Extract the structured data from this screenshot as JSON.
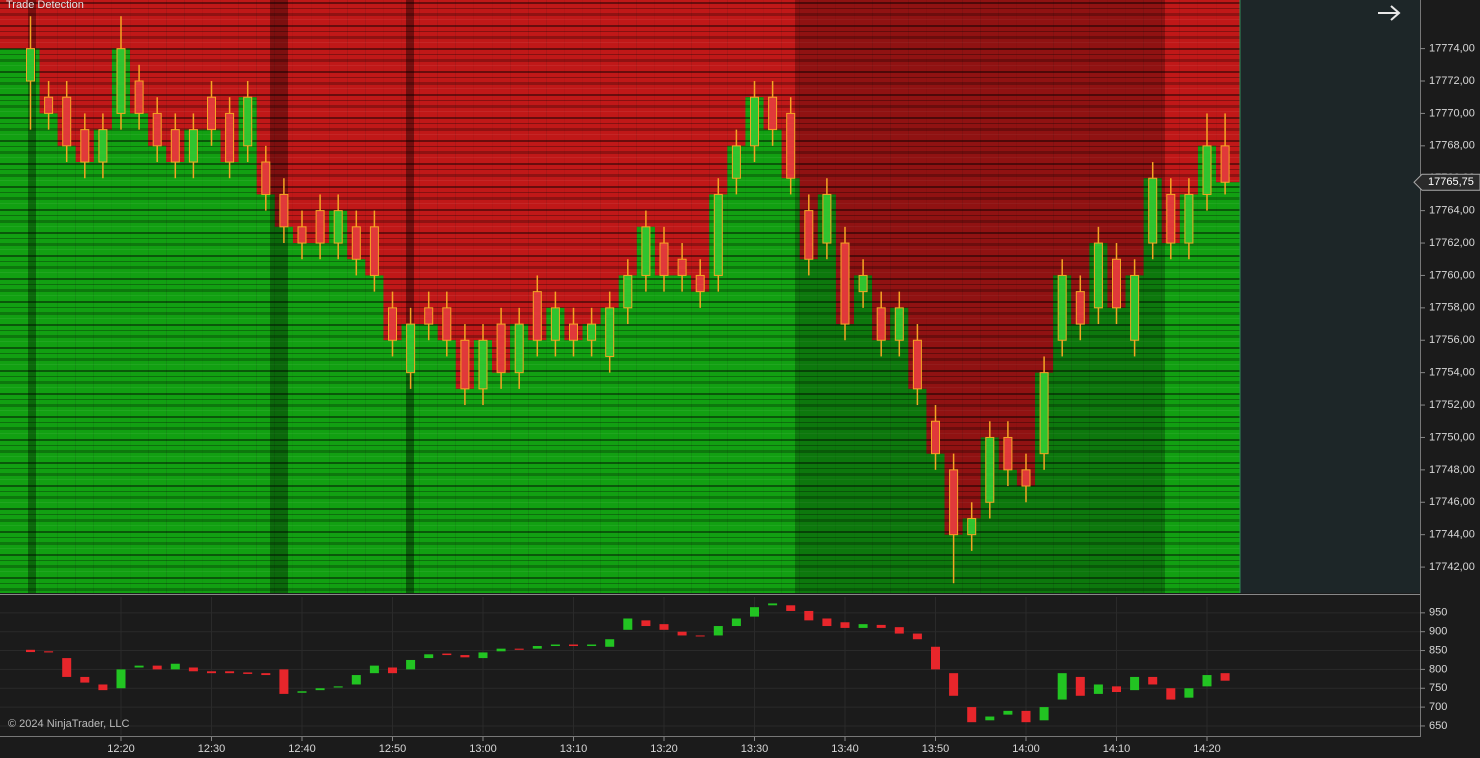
{
  "chart_data": [
    {
      "type": "candlestick",
      "title": "Trade Detection",
      "heatmap": true,
      "up_color": "#2fc42f",
      "down_color": "#e0393a",
      "wick_color": "#f5a623",
      "heat_up_color": "#12a012",
      "heat_down_color": "#c01818",
      "last_price_label": "17765,75",
      "x": [
        "12:10",
        "12:12",
        "12:14",
        "12:16",
        "12:18",
        "12:20",
        "12:22",
        "12:24",
        "12:26",
        "12:28",
        "12:30",
        "12:32",
        "12:34",
        "12:36",
        "12:38",
        "12:40",
        "12:42",
        "12:44",
        "12:46",
        "12:48",
        "12:50",
        "12:52",
        "12:54",
        "12:56",
        "12:58",
        "13:00",
        "13:02",
        "13:04",
        "13:06",
        "13:08",
        "13:10",
        "13:12",
        "13:14",
        "13:16",
        "13:18",
        "13:20",
        "13:22",
        "13:24",
        "13:26",
        "13:28",
        "13:30",
        "13:32",
        "13:34",
        "13:36",
        "13:38",
        "13:40",
        "13:42",
        "13:44",
        "13:46",
        "13:48",
        "13:50",
        "13:52",
        "13:54",
        "13:56",
        "13:58",
        "14:00",
        "14:02",
        "14:04",
        "14:06",
        "14:08",
        "14:10",
        "14:12",
        "14:14",
        "14:16",
        "14:18",
        "14:20",
        "14:22"
      ],
      "open": [
        17772,
        17771,
        17771,
        17769,
        17767,
        17770,
        17772,
        17770,
        17769,
        17767,
        17771,
        17770,
        17768,
        17767,
        17765,
        17763,
        17764,
        17762,
        17763,
        17763,
        17758,
        17754,
        17758,
        17758,
        17756,
        17753,
        17757,
        17754,
        17759,
        17756,
        17757,
        17756,
        17755,
        17758,
        17760,
        17762,
        17761,
        17760,
        17760,
        17766,
        17768,
        17771,
        17770,
        17764,
        17762,
        17762,
        17759,
        17758,
        17756,
        17756,
        17751,
        17748,
        17744,
        17746,
        17750,
        17748,
        17749,
        17756,
        17759,
        17758,
        17761,
        17756,
        17762,
        17765,
        17762,
        17765,
        17768
      ],
      "high": [
        17776,
        17772,
        17772,
        17770,
        17770,
        17776,
        17773,
        17771,
        17770,
        17770,
        17772,
        17771,
        17772,
        17768,
        17766,
        17764,
        17765,
        17765,
        17764,
        17764,
        17759,
        17758,
        17759,
        17759,
        17757,
        17757,
        17758,
        17758,
        17760,
        17759,
        17758,
        17758,
        17759,
        17761,
        17764,
        17763,
        17762,
        17761,
        17766,
        17769,
        17772,
        17772,
        17771,
        17765,
        17766,
        17763,
        17761,
        17759,
        17759,
        17757,
        17752,
        17749,
        17746,
        17751,
        17751,
        17749,
        17755,
        17761,
        17760,
        17763,
        17762,
        17761,
        17767,
        17766,
        17766,
        17770,
        17770
      ],
      "low": [
        17769,
        17769,
        17767,
        17766,
        17766,
        17769,
        17769,
        17767,
        17766,
        17766,
        17768,
        17766,
        17767,
        17764,
        17762,
        17761,
        17761,
        17761,
        17760,
        17759,
        17755,
        17753,
        17756,
        17755,
        17752,
        17752,
        17753,
        17753,
        17755,
        17755,
        17755,
        17755,
        17754,
        17757,
        17759,
        17759,
        17759,
        17758,
        17759,
        17765,
        17767,
        17768,
        17765,
        17760,
        17761,
        17756,
        17758,
        17755,
        17755,
        17752,
        17748,
        17741,
        17743,
        17745,
        17747,
        17746,
        17748,
        17755,
        17756,
        17757,
        17757,
        17755,
        17761,
        17761,
        17761,
        17764,
        17765
      ],
      "close": [
        17774,
        17770,
        17768,
        17767,
        17769,
        17774,
        17770,
        17768,
        17767,
        17769,
        17769,
        17767,
        17771,
        17765,
        17763,
        17762,
        17762,
        17764,
        17761,
        17760,
        17756,
        17757,
        17757,
        17756,
        17753,
        17756,
        17754,
        17757,
        17756,
        17758,
        17756,
        17757,
        17758,
        17760,
        17763,
        17760,
        17760,
        17759,
        17765,
        17768,
        17771,
        17769,
        17766,
        17761,
        17765,
        17757,
        17760,
        17756,
        17758,
        17753,
        17749,
        17744,
        17745,
        17750,
        17748,
        17747,
        17754,
        17760,
        17757,
        17762,
        17758,
        17760,
        17766,
        17762,
        17765,
        17768,
        17765.75
      ],
      "ylim": [
        17740.4,
        17777
      ],
      "yticks": [
        {
          "value": 17742,
          "label": "17742,00"
        },
        {
          "value": 17744,
          "label": "17744,00"
        },
        {
          "value": 17746,
          "label": "17746,00"
        },
        {
          "value": 17748,
          "label": "17748,00"
        },
        {
          "value": 17750,
          "label": "17750,00"
        },
        {
          "value": 17752,
          "label": "17752,00"
        },
        {
          "value": 17754,
          "label": "17754,00"
        },
        {
          "value": 17756,
          "label": "17756,00"
        },
        {
          "value": 17758,
          "label": "17758,00"
        },
        {
          "value": 17760,
          "label": "17760,00"
        },
        {
          "value": 17762,
          "label": "17762,00"
        },
        {
          "value": 17764,
          "label": "17764,00"
        },
        {
          "value": 17766,
          "label": "17766,00"
        },
        {
          "value": 17768,
          "label": "17768,00"
        },
        {
          "value": 17770,
          "label": "17770,00"
        },
        {
          "value": 17772,
          "label": "17772,00"
        },
        {
          "value": 17774,
          "label": "17774,00"
        }
      ]
    },
    {
      "type": "candlestick",
      "footer": "© 2024 NinjaTrader, LLC",
      "up_color": "#22c422",
      "down_color": "#e8262b",
      "grid": true,
      "x": [
        "12:10",
        "12:12",
        "12:14",
        "12:16",
        "12:18",
        "12:20",
        "12:22",
        "12:24",
        "12:26",
        "12:28",
        "12:30",
        "12:32",
        "12:34",
        "12:36",
        "12:38",
        "12:40",
        "12:42",
        "12:44",
        "12:46",
        "12:48",
        "12:50",
        "12:52",
        "12:54",
        "12:56",
        "12:58",
        "13:00",
        "13:02",
        "13:04",
        "13:06",
        "13:08",
        "13:10",
        "13:12",
        "13:14",
        "13:16",
        "13:18",
        "13:20",
        "13:22",
        "13:24",
        "13:26",
        "13:28",
        "13:30",
        "13:32",
        "13:34",
        "13:36",
        "13:38",
        "13:40",
        "13:42",
        "13:44",
        "13:46",
        "13:48",
        "13:50",
        "13:52",
        "13:54",
        "13:56",
        "13:58",
        "14:00",
        "14:02",
        "14:04",
        "14:06",
        "14:08",
        "14:10",
        "14:12",
        "14:14",
        "14:16",
        "14:18",
        "14:20",
        "14:22"
      ],
      "open": [
        852,
        848,
        830,
        780,
        760,
        750,
        805,
        810,
        800,
        805,
        795,
        795,
        792,
        790,
        800,
        738,
        745,
        752,
        760,
        790,
        805,
        800,
        830,
        842,
        838,
        830,
        848,
        855,
        855,
        862,
        866,
        862,
        860,
        905,
        930,
        920,
        900,
        890,
        890,
        915,
        940,
        970,
        970,
        955,
        935,
        925,
        910,
        918,
        912,
        895,
        860,
        790,
        700,
        665,
        680,
        690,
        665,
        720,
        780,
        735,
        755,
        745,
        780,
        750,
        725,
        755,
        790
      ],
      "close": [
        846,
        845,
        780,
        765,
        745,
        800,
        810,
        800,
        815,
        795,
        790,
        790,
        788,
        785,
        735,
        742,
        750,
        755,
        785,
        810,
        790,
        825,
        840,
        838,
        832,
        845,
        855,
        852,
        862,
        866,
        862,
        866,
        880,
        935,
        915,
        905,
        890,
        888,
        915,
        935,
        965,
        975,
        955,
        930,
        915,
        910,
        920,
        910,
        895,
        880,
        800,
        730,
        660,
        675,
        690,
        660,
        700,
        790,
        730,
        760,
        740,
        780,
        760,
        720,
        750,
        785,
        770
      ],
      "ylim": [
        626,
        992
      ],
      "yticks": [
        650,
        700,
        750,
        800,
        850,
        900,
        950
      ],
      "xticks": [
        "12:20",
        "12:30",
        "12:40",
        "12:50",
        "13:00",
        "13:10",
        "13:20",
        "13:30",
        "13:40",
        "13:50",
        "14:00",
        "14:10",
        "14:20"
      ]
    }
  ]
}
